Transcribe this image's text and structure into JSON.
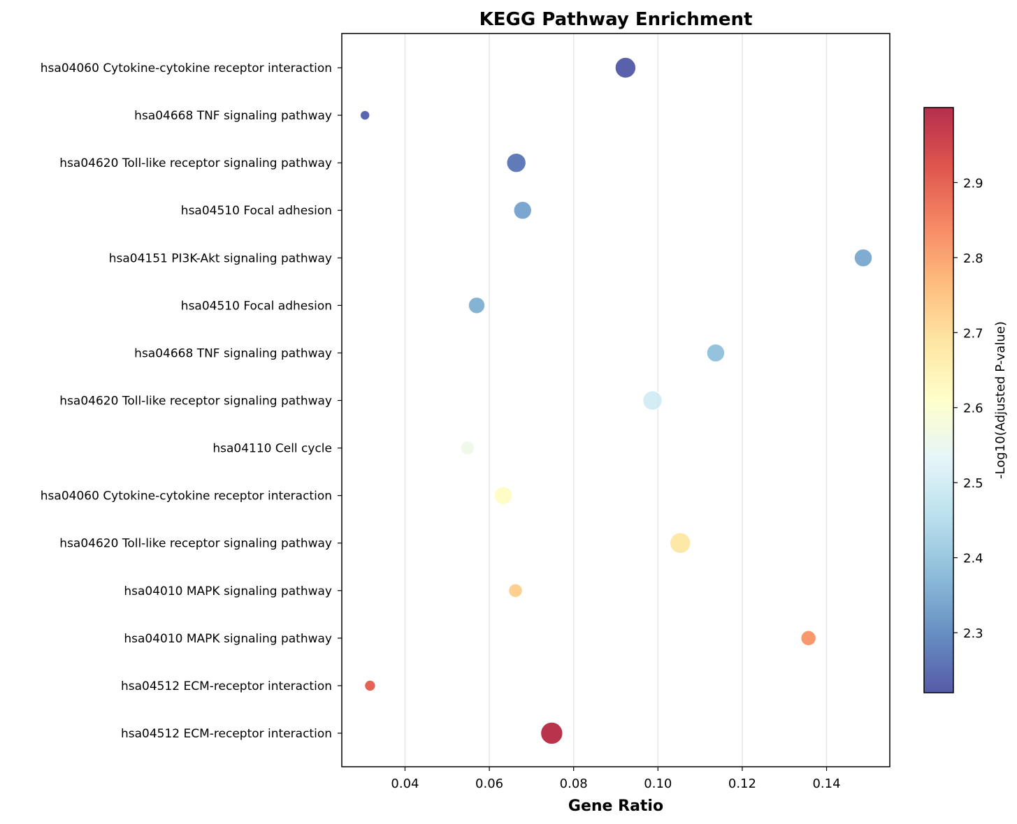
{
  "chart_data": {
    "type": "scatter",
    "title": "KEGG Pathway Enrichment",
    "xlabel": "Gene Ratio",
    "colorbar_label": "-Log10(Adjusted P-value)",
    "xlim": [
      0.025,
      0.155
    ],
    "x_ticks": [
      0.04,
      0.06,
      0.08,
      0.1,
      0.12,
      0.14
    ],
    "x_tick_labels": [
      "0.04",
      "0.06",
      "0.08",
      "0.10",
      "0.12",
      "0.14"
    ],
    "x_grid": true,
    "colorbar_range": [
      2.22,
      3.0
    ],
    "colorbar_ticks": [
      2.3,
      2.4,
      2.5,
      2.6,
      2.7,
      2.8,
      2.9
    ],
    "colorbar_tick_labels": [
      "2.3",
      "2.4",
      "2.5",
      "2.6",
      "2.7",
      "2.8",
      "2.9"
    ],
    "colormap": "RdYlBu_r",
    "categories": [
      "hsa04060 Cytokine-cytokine receptor interaction",
      "hsa04668 TNF signaling pathway",
      "hsa04620 Toll-like receptor signaling pathway",
      "hsa04510 Focal adhesion",
      "hsa04151 PI3K-Akt signaling pathway",
      "hsa04510 Focal adhesion",
      "hsa04668 TNF signaling pathway",
      "hsa04620 Toll-like receptor signaling pathway",
      "hsa04110 Cell cycle",
      "hsa04060 Cytokine-cytokine receptor interaction",
      "hsa04620 Toll-like receptor signaling pathway",
      "hsa04010 MAPK signaling pathway",
      "hsa04010 MAPK signaling pathway",
      "hsa04512 ECM-receptor interaction",
      "hsa04512 ECM-receptor interaction"
    ],
    "points": [
      {
        "x": 0.0923,
        "neglog10p": 2.23,
        "size": 15
      },
      {
        "x": 0.0305,
        "neglog10p": 2.24,
        "size": 7
      },
      {
        "x": 0.0664,
        "neglog10p": 2.27,
        "size": 14
      },
      {
        "x": 0.0679,
        "neglog10p": 2.34,
        "size": 13
      },
      {
        "x": 0.1487,
        "neglog10p": 2.35,
        "size": 13
      },
      {
        "x": 0.057,
        "neglog10p": 2.36,
        "size": 12
      },
      {
        "x": 0.1137,
        "neglog10p": 2.39,
        "size": 13
      },
      {
        "x": 0.0987,
        "neglog10p": 2.5,
        "size": 14
      },
      {
        "x": 0.0548,
        "neglog10p": 2.56,
        "size": 10
      },
      {
        "x": 0.0633,
        "neglog10p": 2.62,
        "size": 13
      },
      {
        "x": 0.1053,
        "neglog10p": 2.68,
        "size": 15
      },
      {
        "x": 0.0662,
        "neglog10p": 2.73,
        "size": 10
      },
      {
        "x": 0.1357,
        "neglog10p": 2.82,
        "size": 11
      },
      {
        "x": 0.0317,
        "neglog10p": 2.9,
        "size": 8
      },
      {
        "x": 0.0748,
        "neglog10p": 2.99,
        "size": 16
      }
    ]
  }
}
